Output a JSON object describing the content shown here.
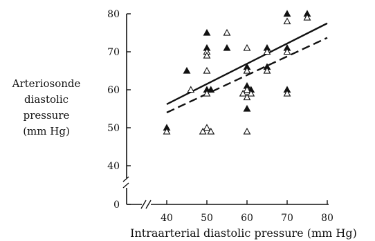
{
  "chart_data": {
    "type": "scatter",
    "title": "",
    "xlabel": "Intraarterial diastolic pressure (mm Hg)",
    "ylabel_lines": [
      "Arteriosonde",
      "diastolic",
      "pressure",
      "(mm Hg)"
    ],
    "xlim": [
      35,
      80
    ],
    "ylim": [
      40,
      80
    ],
    "x_ticks": [
      "40",
      "50",
      "60",
      "70",
      "80"
    ],
    "y_ticks": [
      "0",
      "40",
      "50",
      "60",
      "70",
      "80"
    ],
    "axis_break": true,
    "grid": false,
    "series": [
      {
        "marker": "filled-triangle",
        "points": [
          [
            40,
            50
          ],
          [
            45,
            65
          ],
          [
            50,
            75
          ],
          [
            50,
            71
          ],
          [
            50,
            60
          ],
          [
            51,
            60
          ],
          [
            55,
            71
          ],
          [
            60,
            66
          ],
          [
            60,
            61
          ],
          [
            61,
            60
          ],
          [
            60,
            55
          ],
          [
            65,
            71
          ],
          [
            65,
            66
          ],
          [
            70,
            80
          ],
          [
            70,
            71
          ],
          [
            70,
            60
          ],
          [
            75,
            80
          ]
        ]
      },
      {
        "marker": "open-triangle",
        "points": [
          [
            40,
            49
          ],
          [
            46,
            60
          ],
          [
            50,
            70
          ],
          [
            50,
            69
          ],
          [
            50,
            65
          ],
          [
            50,
            59
          ],
          [
            50,
            50
          ],
          [
            51,
            49
          ],
          [
            49,
            49
          ],
          [
            55,
            75
          ],
          [
            60,
            71
          ],
          [
            60,
            65
          ],
          [
            60,
            60
          ],
          [
            59,
            59
          ],
          [
            61,
            59
          ],
          [
            60,
            58
          ],
          [
            60,
            49
          ],
          [
            65,
            70
          ],
          [
            65,
            65
          ],
          [
            70,
            78
          ],
          [
            70,
            70
          ],
          [
            70,
            59
          ],
          [
            75,
            79
          ]
        ]
      }
    ],
    "lines": [
      {
        "style": "solid",
        "x": [
          40,
          80
        ],
        "y": [
          56.2,
          77.5
        ]
      },
      {
        "style": "dashed",
        "x": [
          40,
          80
        ],
        "y": [
          54.0,
          73.7
        ]
      }
    ]
  }
}
